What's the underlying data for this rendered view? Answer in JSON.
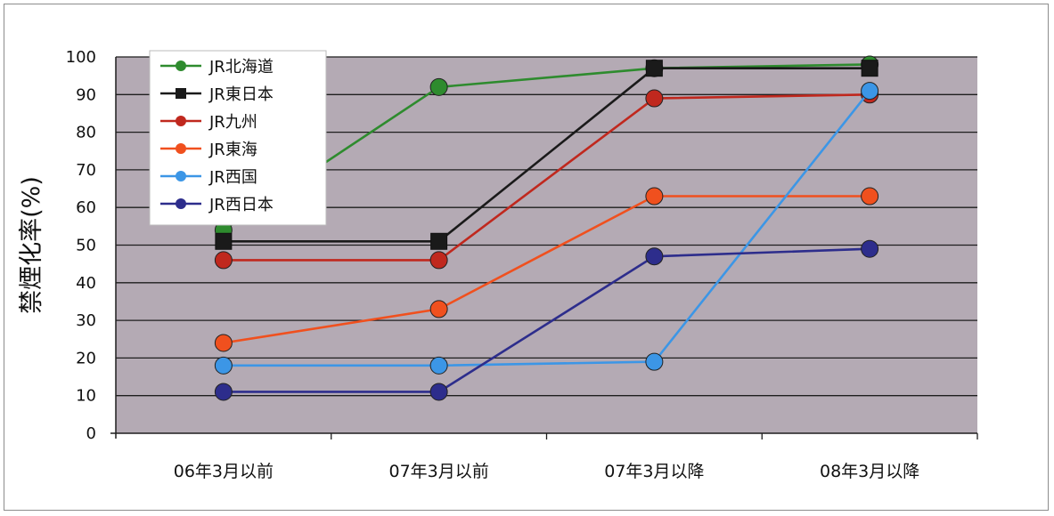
{
  "chart_data": {
    "type": "line",
    "title": "",
    "xlabel": "",
    "ylabel": "禁煙化率(%)",
    "categories": [
      "06年3月以前",
      "07年3月以前",
      "07年3月以降",
      "08年3月以降"
    ],
    "ylim": [
      0,
      100
    ],
    "ytick_step": 10,
    "yticks": [
      "0",
      "10",
      "20",
      "30",
      "40",
      "50",
      "60",
      "70",
      "80",
      "90",
      "100"
    ],
    "grid": true,
    "legend_position": "top-left",
    "plot_background": "#b4aab4",
    "series": [
      {
        "name": "JR北海道",
        "color": "#2e8b2e",
        "marker": "circle",
        "values": [
          54,
          92,
          97,
          98
        ]
      },
      {
        "name": "JR東日本",
        "color": "#1a1a1a",
        "marker": "square",
        "values": [
          51,
          51,
          97,
          97
        ]
      },
      {
        "name": "JR九州",
        "color": "#c0281e",
        "marker": "circle",
        "values": [
          46,
          46,
          89,
          90
        ]
      },
      {
        "name": "JR東海",
        "color": "#f0501e",
        "marker": "circle",
        "values": [
          24,
          33,
          63,
          63
        ]
      },
      {
        "name": "JR西国",
        "color": "#3c96e6",
        "marker": "circle",
        "values": [
          18,
          18,
          19,
          91
        ]
      },
      {
        "name": "JR西日本",
        "color": "#2d2d8c",
        "marker": "circle",
        "values": [
          11,
          11,
          47,
          49
        ]
      }
    ]
  }
}
